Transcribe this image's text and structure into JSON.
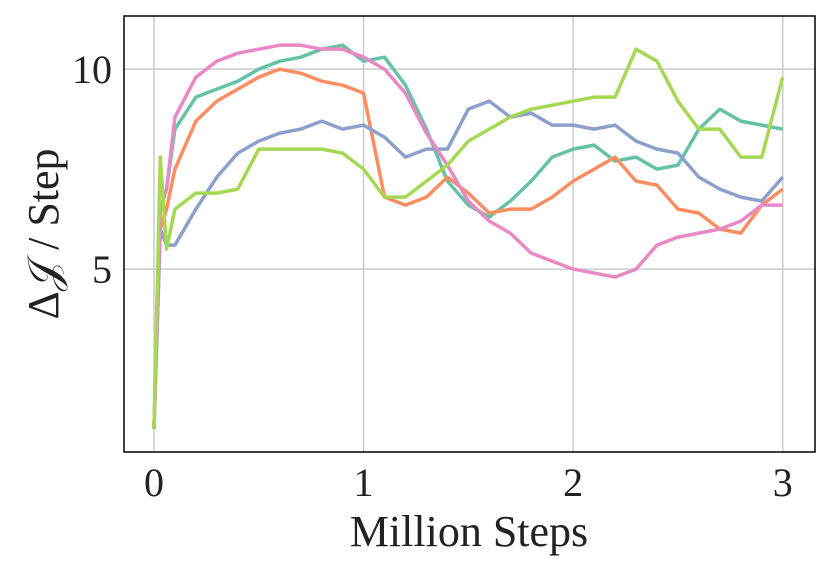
{
  "chart_data": {
    "type": "line",
    "xlabel": "Million Steps",
    "ylabel": "Δ𝒥 / Step",
    "x": [
      0,
      0.03,
      0.06,
      0.1,
      0.2,
      0.3,
      0.4,
      0.5,
      0.6,
      0.7,
      0.8,
      0.9,
      1.0,
      1.1,
      1.2,
      1.3,
      1.4,
      1.5,
      1.6,
      1.7,
      1.8,
      1.9,
      2.0,
      2.1,
      2.2,
      2.3,
      2.4,
      2.5,
      2.6,
      2.7,
      2.8,
      2.9,
      3.0
    ],
    "series": [
      {
        "color": "#66c2a5",
        "values": [
          1.0,
          6.5,
          7.0,
          8.5,
          9.3,
          9.5,
          9.7,
          10.0,
          10.2,
          10.3,
          10.5,
          10.6,
          10.2,
          10.3,
          9.6,
          8.5,
          7.2,
          6.6,
          6.3,
          6.7,
          7.2,
          7.8,
          8.0,
          8.1,
          7.7,
          7.8,
          7.5,
          7.6,
          8.5,
          9.0,
          8.7,
          8.6,
          8.5
        ]
      },
      {
        "color": "#fc8d62",
        "values": [
          1.0,
          6.0,
          6.5,
          7.5,
          8.7,
          9.2,
          9.5,
          9.8,
          10.0,
          9.9,
          9.7,
          9.6,
          9.4,
          6.8,
          6.6,
          6.8,
          7.3,
          6.9,
          6.4,
          6.5,
          6.5,
          6.8,
          7.2,
          7.5,
          7.8,
          7.2,
          7.1,
          6.5,
          6.4,
          6.0,
          5.9,
          6.6,
          7.0
        ]
      },
      {
        "color": "#8da0cb",
        "values": [
          1.0,
          6.0,
          5.6,
          5.6,
          6.5,
          7.3,
          7.9,
          8.2,
          8.4,
          8.5,
          8.7,
          8.5,
          8.6,
          8.3,
          7.8,
          8.0,
          8.0,
          9.0,
          9.2,
          8.8,
          8.9,
          8.6,
          8.6,
          8.5,
          8.6,
          8.2,
          8.0,
          7.9,
          7.3,
          7.0,
          6.8,
          6.7,
          7.3
        ]
      },
      {
        "color": "#e78ac3",
        "values": [
          1.0,
          6.5,
          7.0,
          8.8,
          9.8,
          10.2,
          10.4,
          10.5,
          10.6,
          10.6,
          10.5,
          10.5,
          10.3,
          10.0,
          9.4,
          8.4,
          7.6,
          6.7,
          6.2,
          5.9,
          5.4,
          5.2,
          5.0,
          4.9,
          4.8,
          5.0,
          5.6,
          5.8,
          5.9,
          6.0,
          6.2,
          6.6,
          6.6
        ]
      },
      {
        "color": "#a6d854",
        "values": [
          1.0,
          7.8,
          5.5,
          6.5,
          6.9,
          6.9,
          7.0,
          8.0,
          8.0,
          8.0,
          8.0,
          7.9,
          7.5,
          6.8,
          6.8,
          7.2,
          7.6,
          8.2,
          8.5,
          8.8,
          9.0,
          9.1,
          9.2,
          9.3,
          9.3,
          10.5,
          10.2,
          9.2,
          8.5,
          8.5,
          7.8,
          7.8,
          9.8
        ]
      }
    ],
    "xlim": [
      -0.143,
      3.154
    ],
    "ylim": [
      0.425,
      11.33
    ],
    "xticks": [
      0,
      1,
      2,
      3
    ],
    "yticks": [
      5,
      10
    ],
    "grid": true
  }
}
